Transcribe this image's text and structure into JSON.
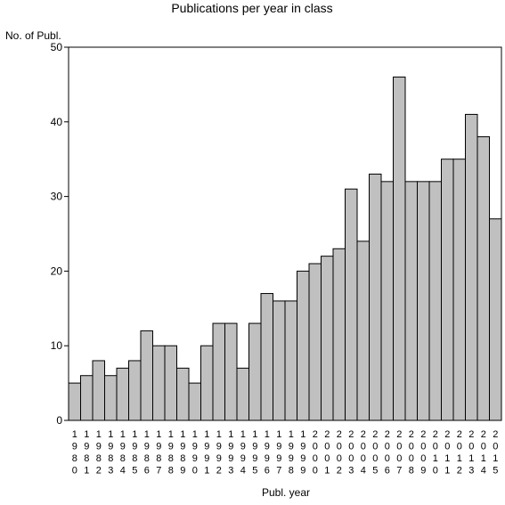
{
  "chart_data": {
    "type": "bar",
    "title": "Publications per year in class",
    "ylabel": "No. of Publ.",
    "xlabel": "Publ. year",
    "ylim": [
      0,
      50
    ],
    "yticks": [
      0,
      10,
      20,
      30,
      40,
      50
    ],
    "grid": false,
    "legend": "none",
    "categories": [
      "1980",
      "1981",
      "1982",
      "1983",
      "1984",
      "1985",
      "1986",
      "1987",
      "1988",
      "1989",
      "1990",
      "1991",
      "1992",
      "1993",
      "1994",
      "1995",
      "1996",
      "1997",
      "1998",
      "1999",
      "2000",
      "2001",
      "2002",
      "2003",
      "2004",
      "2005",
      "2006",
      "2007",
      "2008",
      "2009",
      "2010",
      "2011",
      "2012",
      "2013",
      "2014",
      "2015"
    ],
    "values": [
      5,
      6,
      8,
      6,
      7,
      8,
      12,
      10,
      10,
      7,
      5,
      10,
      13,
      13,
      7,
      13,
      17,
      16,
      16,
      20,
      21,
      22,
      23,
      31,
      24,
      33,
      32,
      46,
      32,
      32,
      32,
      35,
      35,
      41,
      38,
      27
    ],
    "bar_color": "#c0c0c0",
    "bar_edge_color": "#000000"
  }
}
